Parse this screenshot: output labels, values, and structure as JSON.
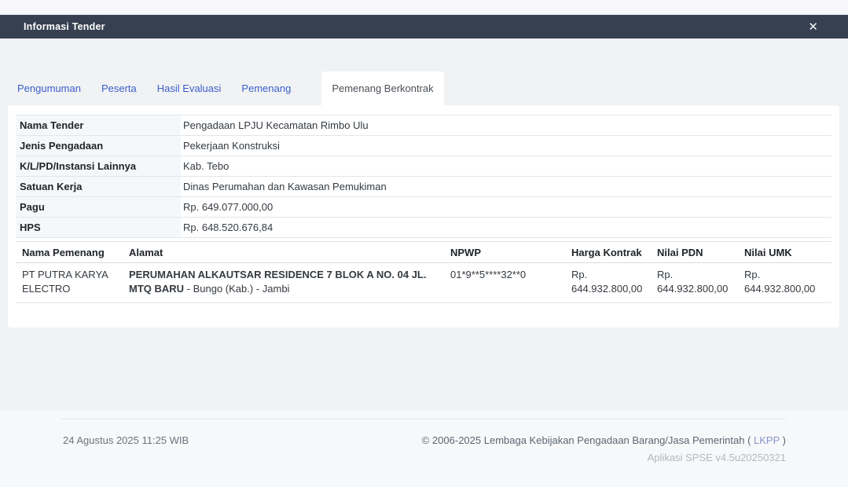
{
  "modal": {
    "title": "Informasi Tender",
    "close_icon": "✕"
  },
  "tabs": [
    {
      "label": "Pengumuman",
      "active": false
    },
    {
      "label": "Peserta",
      "active": false
    },
    {
      "label": "Hasil Evaluasi",
      "active": false
    },
    {
      "label": "Pemenang",
      "active": false
    },
    {
      "label": "Pemenang Berkontrak",
      "active": true
    }
  ],
  "details": {
    "rows": [
      {
        "label": "Nama Tender",
        "value": "Pengadaan LPJU Kecamatan Rimbo Ulu"
      },
      {
        "label": "Jenis Pengadaan",
        "value": "Pekerjaan Konstruksi"
      },
      {
        "label": "K/L/PD/Instansi Lainnya",
        "value": "Kab. Tebo"
      },
      {
        "label": "Satuan Kerja",
        "value": "Dinas Perumahan dan Kawasan Pemukiman"
      },
      {
        "label": "Pagu",
        "value": "Rp. 649.077.000,00"
      },
      {
        "label": "HPS",
        "value": "Rp. 648.520.676,84"
      }
    ]
  },
  "winners_table": {
    "columns": [
      "Nama Pemenang",
      "Alamat",
      "NPWP",
      "Harga Kontrak",
      "Nilai PDN",
      "Nilai UMK"
    ],
    "row": {
      "nama_pemenang": "PT PUTRA KARYA ELECTRO",
      "alamat_bold": "PERUMAHAN ALKAUTSAR RESIDENCE 7 BLOK A NO. 04 JL. MTQ BARU",
      "alamat_rest": " - Bungo (Kab.) - Jambi",
      "npwp": "01*9**5****32**0",
      "harga_kontrak": "Rp. 644.932.800,00",
      "nilai_pdn": "Rp. 644.932.800,00",
      "nilai_umk": "Rp. 644.932.800,00"
    }
  },
  "footer": {
    "timestamp": "24 Agustus 2025 11:25 WIB",
    "copyright_prefix": "© 2006-2025 Lembaga Kebijakan Pengadaan Barang/Jasa Pemerintah ( ",
    "lkpp_link": "LKPP",
    "copyright_suffix": " )",
    "app_version": "Aplikasi SPSE v4.5u20250321"
  },
  "colors": {
    "header_bg": "#364050",
    "tab_link_blue": "#3b5ec9",
    "active_tab_text": "#495057",
    "label_cell_bg": "#f4f8fa",
    "lkpp_link_blue": "#8a94ca",
    "page_bg": "#f1f2f4",
    "footer_bg": "#f7f8fa"
  }
}
